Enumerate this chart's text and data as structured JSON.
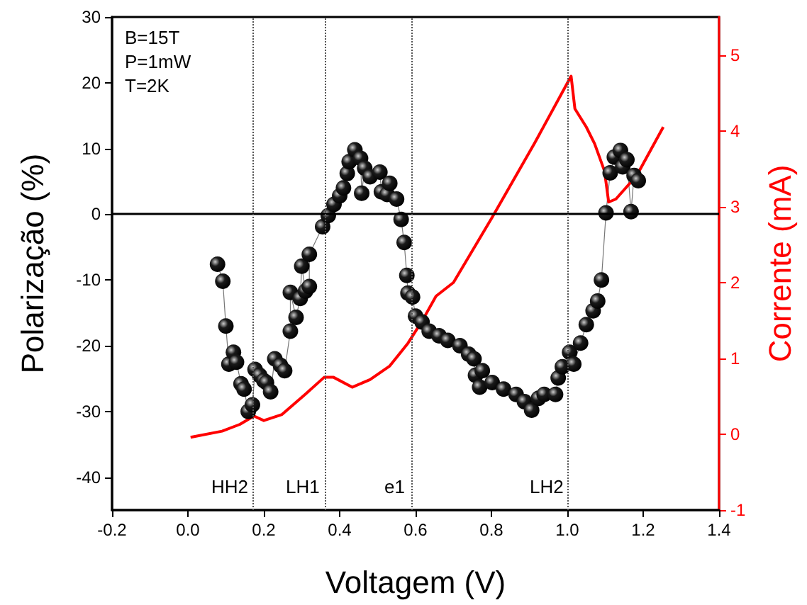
{
  "chart_data": {
    "type": "scatter",
    "xlabel": "Voltagem (V)",
    "ylabel": "Polarização (%)",
    "y2label": "Corrente (mA)",
    "xlim": [
      -0.2,
      1.4
    ],
    "xticks": [
      {
        "value": -0.2,
        "label": "-0.2"
      },
      {
        "value": 0,
        "label": "0.0"
      },
      {
        "value": 0.2,
        "label": "0.2"
      },
      {
        "value": 0.4,
        "label": "0.4"
      },
      {
        "value": 0.6,
        "label": "0.6"
      },
      {
        "value": 0.8,
        "label": "0.8"
      },
      {
        "value": 1,
        "label": "1.0"
      },
      {
        "value": 1.2,
        "label": "1.2"
      },
      {
        "value": 1.4,
        "label": "1.4"
      }
    ],
    "ylim": [
      -45,
      30
    ],
    "yticks": [
      -40,
      -30,
      -20,
      -10,
      0,
      10,
      20,
      30
    ],
    "y2lim": [
      -1,
      5.5
    ],
    "y2ticks": [
      -1,
      0,
      1,
      2,
      3,
      4,
      5
    ],
    "grid": false,
    "annotations": [
      "B=15T",
      "P=1mW",
      "T=2K"
    ],
    "ref_lines": [
      {
        "axis": "y",
        "value": 0,
        "color": "#000000",
        "line_style": "solid"
      },
      {
        "axis": "x",
        "value": 0.174,
        "label": "HH2",
        "color": "#555555",
        "line_style": "dotted"
      },
      {
        "axis": "x",
        "value": 0.362,
        "label": "LH1",
        "color": "#555555",
        "line_style": "dotted"
      },
      {
        "axis": "x",
        "value": 0.587,
        "label": "e1",
        "color": "#555555",
        "line_style": "dotted"
      },
      {
        "axis": "x",
        "value": 1.005,
        "label": "LH2",
        "color": "#555555",
        "line_style": "dotted"
      }
    ],
    "series": [
      {
        "type": "line",
        "color": "#1a1a1a",
        "marker": "circle",
        "x": [
          0.078,
          0.092,
          0.1,
          0.108,
          0.12,
          0.128,
          0.14,
          0.148,
          0.159,
          0.17,
          0.177,
          0.189,
          0.2,
          0.207,
          0.218,
          0.229,
          0.244,
          0.255,
          0.27,
          0.27,
          0.285,
          0.296,
          0.3,
          0.31,
          0.32,
          0.32,
          0.355,
          0.37,
          0.385,
          0.4,
          0.41,
          0.42,
          0.425,
          0.44,
          0.455,
          0.458,
          0.466,
          0.48,
          0.506,
          0.51,
          0.525,
          0.532,
          0.55,
          0.562,
          0.57,
          0.577,
          0.58,
          0.592,
          0.6,
          0.617,
          0.636,
          0.662,
          0.685,
          0.717,
          0.74,
          0.754,
          0.758,
          0.769,
          0.776,
          0.802,
          0.832,
          0.865,
          0.887,
          0.906,
          0.924,
          0.939,
          0.969,
          0.976,
          0.987,
          1.006,
          1.017,
          1.035,
          1.05,
          1.068,
          1.08,
          1.09,
          1.102,
          1.113,
          1.124,
          1.14,
          1.146,
          1.157,
          1.168,
          1.176,
          1.187
        ],
        "values": [
          -7.6,
          -10.2,
          -17,
          -22.8,
          -21,
          -22.5,
          -25.8,
          -26.6,
          -30,
          -29,
          -23.6,
          -24.5,
          -25.3,
          -25.6,
          -27,
          -22,
          -23,
          -23.8,
          -17.8,
          -11.9,
          -15.7,
          -12.8,
          -7.9,
          -11.7,
          -11,
          -6.1,
          -1.9,
          -0.2,
          1.5,
          2.8,
          4,
          6.2,
          8,
          9.8,
          8.5,
          3.2,
          7,
          5.7,
          6.4,
          3.4,
          3,
          4.7,
          2.3,
          -0.8,
          -4.3,
          -9.3,
          -12,
          -12.6,
          -15.5,
          -16.4,
          -17.8,
          -18.5,
          -19.2,
          -20,
          -21.3,
          -22,
          -24.5,
          -26.3,
          -23.8,
          -25.6,
          -26.6,
          -27.4,
          -28.5,
          -29.8,
          -28,
          -27.4,
          -27.4,
          -24.9,
          -23.2,
          -21,
          -22.8,
          -19.6,
          -16.8,
          -14.7,
          -13.2,
          -10,
          0.2,
          6.3,
          8.7,
          9.7,
          7.2,
          8.3,
          0.4,
          5.9,
          5.1
        ]
      },
      {
        "type": "line",
        "axis": "y2",
        "color": "#ff0000",
        "marker": "none",
        "x": [
          0.007,
          0.09,
          0.137,
          0.174,
          0.2,
          0.248,
          0.31,
          0.359,
          0.384,
          0.433,
          0.48,
          0.532,
          0.58,
          0.617,
          0.654,
          0.7,
          0.802,
          0.913,
          1.01,
          1.02,
          1.05,
          1.072,
          1.098,
          1.109,
          1.128,
          1.183,
          1.253
        ],
        "values": [
          -0.04,
          0.04,
          0.13,
          0.24,
          0.18,
          0.26,
          0.53,
          0.75,
          0.75,
          0.62,
          0.72,
          0.9,
          1.2,
          1.49,
          1.82,
          2.0,
          2.86,
          3.83,
          4.72,
          4.29,
          4.05,
          3.83,
          3.47,
          3.06,
          3.1,
          3.41,
          4.05
        ]
      }
    ]
  }
}
